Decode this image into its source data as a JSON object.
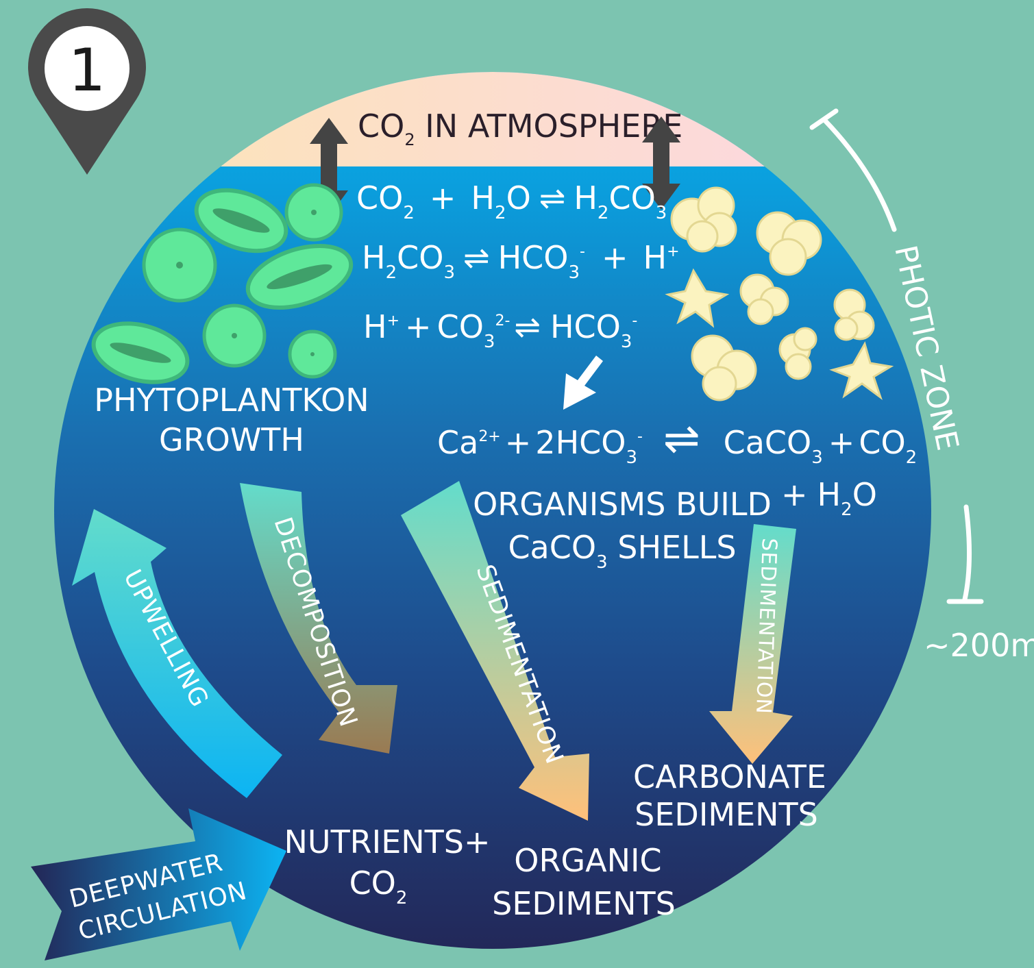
{
  "marker": {
    "number": "1"
  },
  "atmosphere": {
    "label": "CO",
    "sub": "2",
    "rest": " IN ATMOSPHERE"
  },
  "equations": {
    "eq1": {
      "a": "CO",
      "a_sub": "2",
      "plus": "+",
      "b": "H",
      "b_sub": "2",
      "b_rest": "O",
      "arrow": "⇌",
      "c": "H",
      "c_sub": "2",
      "c_rest": "CO",
      "c_sub2": "3"
    },
    "eq2": {
      "a": "H",
      "a_sub": "2",
      "a_rest": "CO",
      "a_sub2": "3",
      "arrow": "⇌",
      "b": "HCO",
      "b_sub": "3",
      "b_sup": "-",
      "plus": "+",
      "c": "H",
      "c_sup": "+"
    },
    "eq3": {
      "a": "H",
      "a_sup": "+",
      "plus": "+",
      "b": "CO",
      "b_sub": "3",
      "b_sup": "2-",
      "arrow": "⇌",
      "c": "HCO",
      "c_sub": "3",
      "c_sup": "-"
    },
    "eq4": {
      "a": "Ca",
      "a_sup": "2+",
      "plus": "+",
      "b": "2HCO",
      "b_sub": "3",
      "b_sup": "-",
      "arrow": "⇌",
      "c": "CaCO",
      "c_sub": "3",
      "plus2": "+",
      "d": "CO",
      "d_sub": "2",
      "plus3": "+",
      "e": "H",
      "e_sub": "2",
      "e_rest": "O"
    }
  },
  "labels": {
    "phyto_1": "PHYTOPLANTKON",
    "phyto_2": "GROWTH",
    "org_build_1": "ORGANISMS BUILD",
    "org_build_2a": "CaCO",
    "org_build_2sub": "3",
    "org_build_2b": " SHELLS",
    "nutrients_1": "NUTRIENTS+",
    "nutrients_2": "CO",
    "nutrients_2sub": "2",
    "organic_1": "ORGANIC",
    "organic_2": "SEDIMENTS",
    "carbonate_1": "CARBONATE",
    "carbonate_2": "SEDIMENTS",
    "photic": "PHOTIC ZONE",
    "depth": "~200m"
  },
  "arrows": {
    "upwelling": "UPWELLING",
    "decomposition": "DECOMPOSITION",
    "sedimentation_1": "SEDIMENTATION",
    "sedimentation_2": "SEDIMENTATION",
    "deepwater_1": "DEEPWATER",
    "deepwater_2": "CIRCULATION"
  },
  "colors": {
    "background": "#7cc4b0",
    "ocean_top": "#09bbf3",
    "ocean_bottom": "#222759",
    "marker": "#4a4a4a",
    "phyto": "#5fe89a",
    "shells": "#fbf3c0"
  }
}
